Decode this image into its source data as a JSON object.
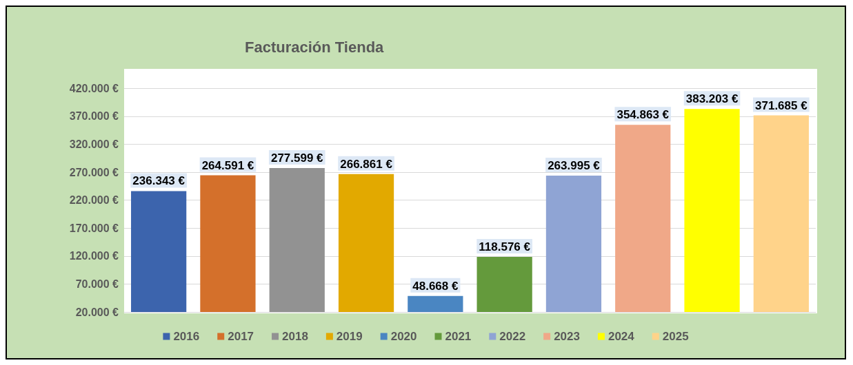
{
  "chart_data": {
    "type": "bar",
    "title": "Facturación Tienda",
    "categories": [
      null,
      null,
      null,
      null,
      null,
      null,
      null,
      null,
      null,
      null
    ],
    "series": [
      {
        "name": "2016",
        "color": "#3c64ad",
        "values": [
          236343,
          null,
          null,
          null,
          null,
          null,
          null,
          null,
          null,
          null
        ],
        "value_labels": [
          "236.343 €",
          null,
          null,
          null,
          null,
          null,
          null,
          null,
          null,
          null
        ]
      },
      {
        "name": "2017",
        "color": "#d4702b",
        "values": [
          null,
          264591,
          null,
          null,
          null,
          null,
          null,
          null,
          null,
          null
        ],
        "value_labels": [
          null,
          "264.591 €",
          null,
          null,
          null,
          null,
          null,
          null,
          null,
          null
        ]
      },
      {
        "name": "2018",
        "color": "#929292",
        "values": [
          null,
          null,
          277599,
          null,
          null,
          null,
          null,
          null,
          null,
          null
        ],
        "value_labels": [
          null,
          null,
          "277.599 €",
          null,
          null,
          null,
          null,
          null,
          null,
          null
        ]
      },
      {
        "name": "2019",
        "color": "#e2a900",
        "values": [
          null,
          null,
          null,
          266861,
          null,
          null,
          null,
          null,
          null,
          null
        ],
        "value_labels": [
          null,
          null,
          null,
          "266.861 €",
          null,
          null,
          null,
          null,
          null,
          null
        ]
      },
      {
        "name": "2020",
        "color": "#4a86c2",
        "values": [
          null,
          null,
          null,
          null,
          48668,
          null,
          null,
          null,
          null,
          null
        ],
        "value_labels": [
          null,
          null,
          null,
          null,
          "48.668 €",
          null,
          null,
          null,
          null,
          null
        ]
      },
      {
        "name": "2021",
        "color": "#649a3c",
        "values": [
          null,
          null,
          null,
          null,
          null,
          118576,
          null,
          null,
          null,
          null
        ],
        "value_labels": [
          null,
          null,
          null,
          null,
          null,
          "118.576 €",
          null,
          null,
          null,
          null
        ]
      },
      {
        "name": "2022",
        "color": "#8fa4d4",
        "values": [
          null,
          null,
          null,
          null,
          null,
          null,
          263995,
          null,
          null,
          null
        ],
        "value_labels": [
          null,
          null,
          null,
          null,
          null,
          null,
          "263.995 €",
          null,
          null,
          null
        ]
      },
      {
        "name": "2023",
        "color": "#f0a888",
        "values": [
          null,
          null,
          null,
          null,
          null,
          null,
          null,
          354863,
          null,
          null
        ],
        "value_labels": [
          null,
          null,
          null,
          null,
          null,
          null,
          null,
          "354.863 €",
          null,
          null
        ]
      },
      {
        "name": "2024",
        "color": "#ffff00",
        "values": [
          null,
          null,
          null,
          null,
          null,
          null,
          null,
          null,
          383203,
          null
        ],
        "value_labels": [
          null,
          null,
          null,
          null,
          null,
          null,
          null,
          null,
          "383.203 €",
          null
        ]
      },
      {
        "name": "2025",
        "color": "#ffd38a",
        "values": [
          null,
          null,
          null,
          null,
          null,
          null,
          null,
          null,
          null,
          371685
        ],
        "value_labels": [
          null,
          null,
          null,
          null,
          null,
          null,
          null,
          null,
          null,
          "371.685 €"
        ]
      }
    ],
    "ylim": [
      20000,
      455000
    ],
    "yticks": [
      {
        "value": 20000,
        "label": "20.000 €"
      },
      {
        "value": 70000,
        "label": "70.000 €"
      },
      {
        "value": 120000,
        "label": "120.000 €"
      },
      {
        "value": 170000,
        "label": "170.000 €"
      },
      {
        "value": 220000,
        "label": "220.000 €"
      },
      {
        "value": 270000,
        "label": "270.000 €"
      },
      {
        "value": 320000,
        "label": "320.000 €"
      },
      {
        "value": 370000,
        "label": "370.000 €"
      },
      {
        "value": 420000,
        "label": "420.000 €"
      }
    ],
    "grid": "y",
    "legend": "bottom"
  }
}
